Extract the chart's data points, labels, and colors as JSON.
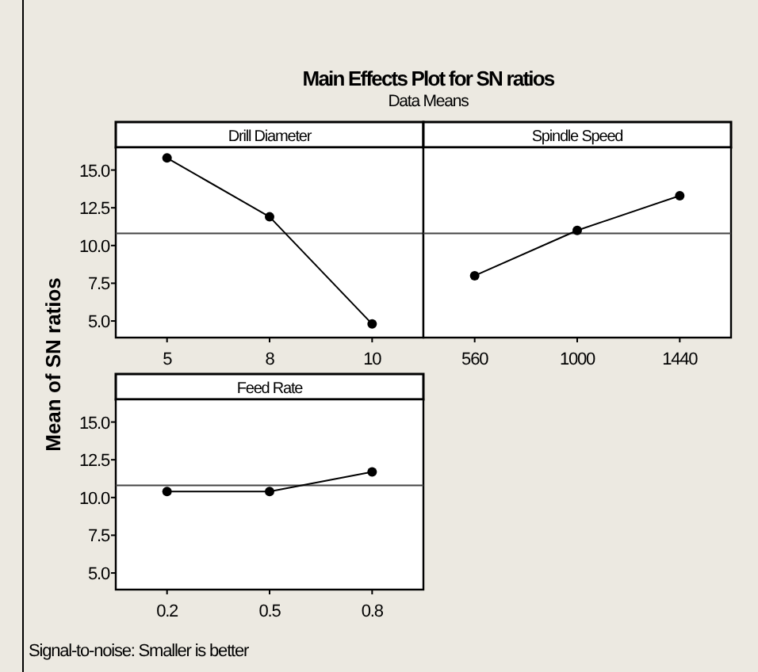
{
  "chart_data": [
    {
      "type": "line",
      "title": "Drill Diameter",
      "ylabel": "Mean of SN ratios",
      "annotations": [
        "Main Effects Plot for SN ratios",
        "Data Means",
        "Signal-to-noise: Smaller is better"
      ],
      "categories": [
        "5",
        "8",
        "10"
      ],
      "values": [
        15.8,
        11.9,
        4.8
      ],
      "color": "#000000",
      "marker": "circle",
      "ylim": [
        3.9,
        16.5
      ],
      "yticks": [
        {
          "value": 5,
          "label": "5.0"
        },
        {
          "value": 7.5,
          "label": "7.5"
        },
        {
          "value": 10,
          "label": "10.0"
        },
        {
          "value": 12.5,
          "label": "12.5"
        },
        {
          "value": 15,
          "label": "15.0"
        }
      ],
      "ref_lines": [
        {
          "axis": "y",
          "value": 10.8,
          "color": "#444444"
        }
      ]
    },
    {
      "type": "line",
      "title": "Spindle Speed",
      "categories": [
        "560",
        "1000",
        "1440"
      ],
      "values": [
        8.0,
        11.0,
        13.3
      ],
      "color": "#000000",
      "marker": "circle",
      "ylim": [
        3.9,
        16.5
      ],
      "tick_labels": "x",
      "ref_lines": [
        {
          "axis": "y",
          "value": 10.8,
          "color": "#444444"
        }
      ]
    },
    {
      "type": "line",
      "title": "Feed Rate",
      "categories": [
        "0.2",
        "0.5",
        "0.8"
      ],
      "values": [
        10.4,
        10.4,
        11.7
      ],
      "color": "#000000",
      "marker": "circle",
      "ylim": [
        3.9,
        16.5
      ],
      "yticks": [
        {
          "value": 5,
          "label": "5.0"
        },
        {
          "value": 7.5,
          "label": "7.5"
        },
        {
          "value": 10,
          "label": "10.0"
        },
        {
          "value": 12.5,
          "label": "12.5"
        },
        {
          "value": 15,
          "label": "15.0"
        }
      ],
      "ref_lines": [
        {
          "axis": "y",
          "value": 10.8,
          "color": "#444444"
        }
      ]
    }
  ]
}
